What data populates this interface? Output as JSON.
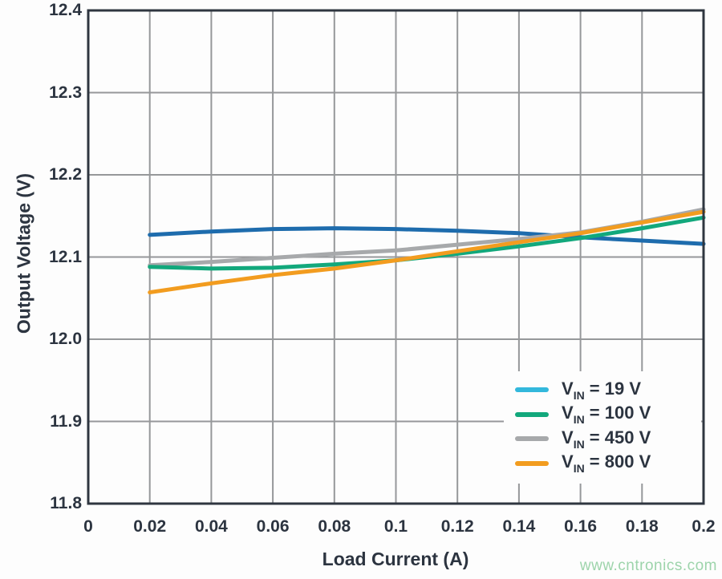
{
  "page": {
    "watermark": "www.cntronics.com"
  },
  "chart_data": {
    "type": "line",
    "title": "",
    "xlabel": "Load Current (A)",
    "ylabel": "Output Voltage (V)",
    "xlim": [
      0,
      0.2
    ],
    "ylim": [
      11.8,
      12.4
    ],
    "grid": true,
    "legend_position": "lower right",
    "x_ticks": [
      0,
      0.02,
      0.04,
      0.06,
      0.08,
      0.1,
      0.12,
      0.14,
      0.16,
      0.18,
      0.2
    ],
    "x_tick_labels": [
      "0",
      "0.02",
      "0.04",
      "0.06",
      "0.08",
      "0.1",
      "0.12",
      "0.14",
      "0.16",
      "0.18",
      "0.2"
    ],
    "y_ticks": [
      11.8,
      11.9,
      12.0,
      12.1,
      12.2,
      12.3,
      12.4
    ],
    "y_tick_labels": [
      "11.8",
      "11.9",
      "12.0",
      "12.1",
      "12.2",
      "12.3",
      "12.4"
    ],
    "x": [
      0.02,
      0.04,
      0.06,
      0.08,
      0.1,
      0.12,
      0.14,
      0.16,
      0.18,
      0.2
    ],
    "series": [
      {
        "id": "vin-19",
        "name": "VIN = 19 V",
        "color": "#1e6cad",
        "legend_color": "#33b8dc",
        "z": 0,
        "values": [
          12.127,
          12.131,
          12.134,
          12.135,
          12.134,
          12.132,
          12.129,
          12.124,
          12.12,
          12.116
        ]
      },
      {
        "id": "vin-100",
        "name": "VIN = 100 V",
        "color": "#12a87c",
        "legend_color": "#12a87c",
        "z": 2,
        "values": [
          12.088,
          12.086,
          12.087,
          12.091,
          12.096,
          12.104,
          12.113,
          12.123,
          12.135,
          12.148
        ]
      },
      {
        "id": "vin-450",
        "name": "VIN = 450 V",
        "color": "#a7a9ab",
        "legend_color": "#a7a9ab",
        "z": 1,
        "values": [
          12.09,
          12.094,
          12.099,
          12.104,
          12.108,
          12.115,
          12.122,
          12.13,
          12.143,
          12.158
        ]
      },
      {
        "id": "vin-800",
        "name": "VIN = 800 V",
        "color": "#f29c1f",
        "legend_color": "#f29c1f",
        "z": 3,
        "values": [
          12.057,
          12.068,
          12.078,
          12.086,
          12.096,
          12.107,
          12.118,
          12.129,
          12.142,
          12.155
        ]
      }
    ]
  },
  "legend": {
    "items": [
      {
        "sym": "V",
        "sub": "IN",
        "rest": " = 19 V"
      },
      {
        "sym": "V",
        "sub": "IN",
        "rest": " = 100 V"
      },
      {
        "sym": "V",
        "sub": "IN",
        "rest": " = 450 V"
      },
      {
        "sym": "V",
        "sub": "IN",
        "rest": " = 800 V"
      }
    ]
  },
  "colors": {
    "text": "#2c3440",
    "grid": "#96989a",
    "border": "#2f3640",
    "watermark": "#9dd4ab"
  }
}
